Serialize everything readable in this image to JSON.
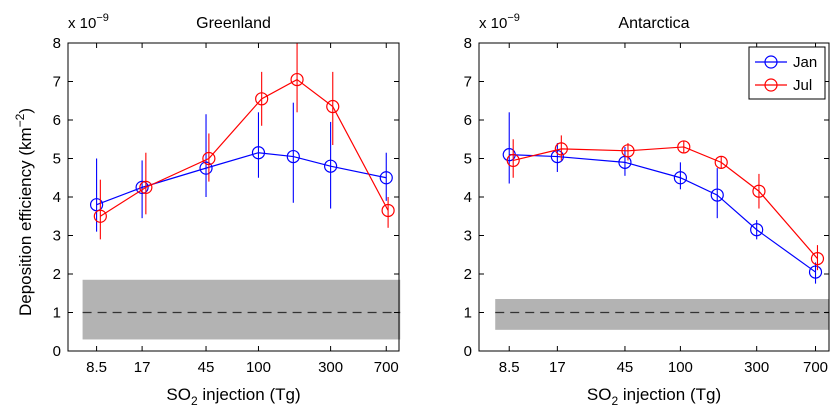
{
  "figure": {
    "ylabel": "Deposition efficiency (km",
    "ylabel_sup": "−2",
    "ylabel_close": ")",
    "xlabel_main": "SO",
    "xlabel_sub": "2",
    "xlabel_rest": " injection (Tg)",
    "scale_text": "x 10",
    "scale_exp": "−9"
  },
  "chart_data": [
    {
      "type": "line",
      "title": "Greenland",
      "x_scale": "log",
      "xticks": [
        8.5,
        17,
        45,
        100,
        300,
        700
      ],
      "xtick_labels": [
        "8.5",
        "17",
        "45",
        "100",
        "300",
        "700"
      ],
      "xlim": [
        5.5,
        850
      ],
      "ylim": [
        0,
        8
      ],
      "yticks": [
        0,
        1,
        2,
        3,
        4,
        5,
        6,
        7,
        8
      ],
      "ytick_labels": [
        "0",
        "1",
        "2",
        "3",
        "4",
        "5",
        "6",
        "7",
        "8"
      ],
      "background_band": {
        "low": 0.3,
        "high": 1.85,
        "line": 1.0,
        "x_range": [
          8.5,
          700
        ]
      },
      "legend": null,
      "series": [
        {
          "name": "Jan",
          "color": "#0000ff",
          "x": [
            8.5,
            17,
            45,
            100,
            170,
            300,
            700
          ],
          "y": [
            3.8,
            4.25,
            4.75,
            5.15,
            5.05,
            4.8,
            4.5
          ],
          "err_low": [
            3.1,
            3.45,
            4.0,
            4.5,
            3.85,
            3.7,
            3.9
          ],
          "err_high": [
            5.0,
            4.95,
            6.15,
            6.2,
            6.45,
            5.95,
            5.15
          ]
        },
        {
          "name": "Jul",
          "color": "#ff0000",
          "x": [
            9.0,
            18,
            47,
            105,
            180,
            310,
            720
          ],
          "y": [
            3.5,
            4.25,
            5.0,
            6.55,
            7.05,
            6.35,
            3.65
          ],
          "err_low": [
            2.9,
            3.55,
            4.4,
            5.85,
            6.2,
            5.35,
            3.2
          ],
          "err_high": [
            4.45,
            5.15,
            5.65,
            7.25,
            8.0,
            7.25,
            4.0
          ]
        }
      ]
    },
    {
      "type": "line",
      "title": "Antarctica",
      "x_scale": "log",
      "xticks": [
        8.5,
        17,
        45,
        100,
        300,
        700
      ],
      "xtick_labels": [
        "8.5",
        "17",
        "45",
        "100",
        "300",
        "700"
      ],
      "xlim": [
        5.5,
        850
      ],
      "ylim": [
        0,
        8
      ],
      "yticks": [
        0,
        1,
        2,
        3,
        4,
        5,
        6,
        7,
        8
      ],
      "ytick_labels": [
        "0",
        "1",
        "2",
        "3",
        "4",
        "5",
        "6",
        "7",
        "8"
      ],
      "background_band": {
        "low": 0.55,
        "high": 1.35,
        "line": 1.0,
        "x_range": [
          8.5,
          700
        ]
      },
      "legend": {
        "position": "top-right",
        "entries": [
          "Jan",
          "Jul"
        ]
      },
      "series": [
        {
          "name": "Jan",
          "color": "#0000ff",
          "x": [
            8.5,
            17,
            45,
            100,
            170,
            300,
            700
          ],
          "y": [
            5.1,
            5.05,
            4.9,
            4.5,
            4.05,
            3.15,
            2.05
          ],
          "err_low": [
            4.35,
            4.65,
            4.55,
            4.2,
            3.45,
            2.9,
            1.75
          ],
          "err_high": [
            6.2,
            5.4,
            5.3,
            4.9,
            4.75,
            3.4,
            2.3
          ]
        },
        {
          "name": "Jul",
          "color": "#ff0000",
          "x": [
            9.0,
            18,
            47,
            105,
            180,
            310,
            720
          ],
          "y": [
            4.95,
            5.25,
            5.2,
            5.3,
            4.9,
            4.15,
            2.4
          ],
          "err_low": [
            4.5,
            4.95,
            4.95,
            5.15,
            4.75,
            3.7,
            2.1
          ],
          "err_high": [
            5.5,
            5.6,
            5.4,
            5.45,
            5.05,
            4.6,
            2.75
          ]
        }
      ]
    }
  ]
}
